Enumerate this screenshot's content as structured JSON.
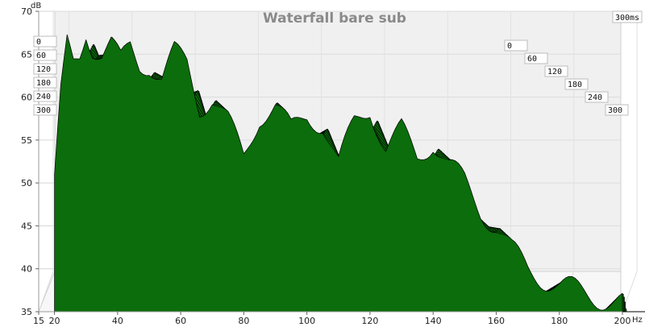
{
  "chart_data": {
    "type": "area",
    "title": "Waterfall bare sub",
    "time_label": "300ms",
    "xlabel": "Hz",
    "ylabel": "dB",
    "xlim": [
      15,
      200
    ],
    "ylim": [
      35,
      70
    ],
    "x_ticks": [
      15,
      20,
      40,
      60,
      80,
      100,
      120,
      140,
      160,
      180,
      200
    ],
    "y_ticks": [
      35,
      40,
      45,
      50,
      55,
      60,
      65,
      70
    ],
    "depth_labels_left": [
      "0",
      "60",
      "120",
      "180",
      "240",
      "300"
    ],
    "depth_labels_right": [
      "0",
      "60",
      "120",
      "180",
      "240",
      "300"
    ],
    "fill_color": "#0b6d0b",
    "line_color": "#000000",
    "grid": true,
    "slices": 60,
    "front_response": [
      [
        20,
        50
      ],
      [
        22,
        60
      ],
      [
        24,
        66
      ],
      [
        26,
        64
      ],
      [
        28,
        65
      ],
      [
        30,
        68
      ],
      [
        32,
        66
      ],
      [
        35,
        65
      ],
      [
        38,
        66
      ],
      [
        41,
        64
      ],
      [
        44,
        66
      ],
      [
        47,
        64
      ],
      [
        50,
        64
      ],
      [
        54,
        62
      ],
      [
        58,
        65
      ],
      [
        62,
        64
      ],
      [
        66,
        59
      ],
      [
        70,
        60
      ],
      [
        75,
        57
      ],
      [
        80,
        53
      ],
      [
        85,
        58
      ],
      [
        90,
        59
      ],
      [
        95,
        56
      ],
      [
        100,
        58
      ],
      [
        105,
        57
      ],
      [
        110,
        52
      ],
      [
        115,
        57
      ],
      [
        120,
        59
      ],
      [
        125,
        54
      ],
      [
        130,
        56
      ],
      [
        135,
        53
      ],
      [
        140,
        55
      ],
      [
        145,
        52
      ],
      [
        150,
        50
      ],
      [
        155,
        47
      ],
      [
        160,
        45
      ],
      [
        165,
        42
      ],
      [
        170,
        40
      ],
      [
        180,
        38
      ],
      [
        190,
        37
      ],
      [
        200,
        36
      ]
    ]
  }
}
